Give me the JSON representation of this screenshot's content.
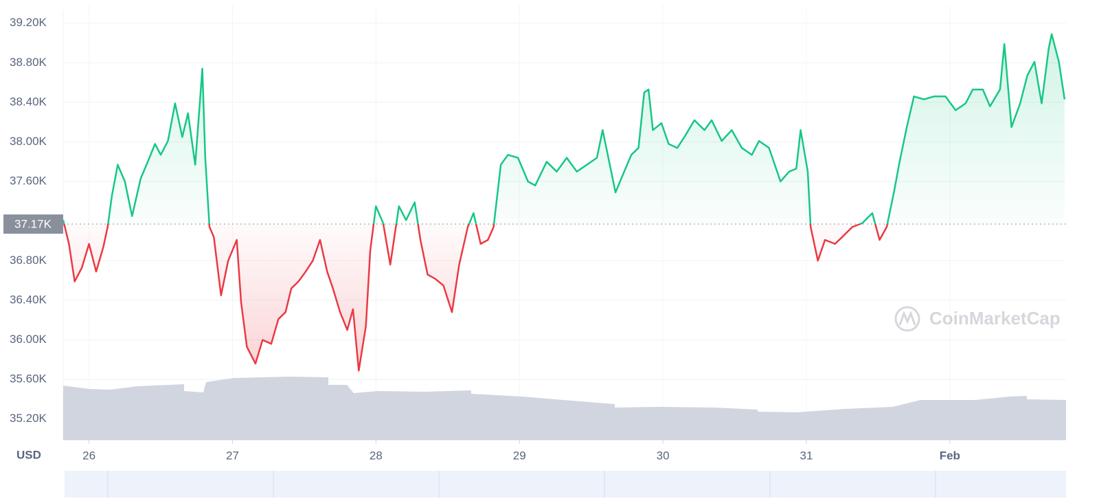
{
  "chart_data": {
    "type": "line",
    "y_unit": "USD",
    "watermark": "CoinMarketCap",
    "baseline": {
      "value": 37170,
      "label": "37.17K"
    },
    "color_up": "#16c784",
    "color_down": "#ea3943",
    "grid": true,
    "xlim": [
      25.82,
      32.81
    ],
    "xticks": [
      26,
      27,
      28,
      29,
      30,
      31,
      {
        "value": 32,
        "label": "Feb"
      }
    ],
    "ylim": [
      34990,
      39330
    ],
    "yticks": [
      {
        "value": 35200,
        "label": "35.20K"
      },
      {
        "value": 35600,
        "label": "35.60K"
      },
      {
        "value": 36000,
        "label": "36.00K"
      },
      {
        "value": 36400,
        "label": "36.40K"
      },
      {
        "value": 36800,
        "label": "36.80K"
      },
      {
        "value": 37600,
        "label": "37.60K"
      },
      {
        "value": 38000,
        "label": "38.00K"
      },
      {
        "value": 38400,
        "label": "38.40K"
      },
      {
        "value": 38800,
        "label": "38.80K"
      },
      {
        "value": 39200,
        "label": "39.20K"
      }
    ],
    "x": [
      25.82,
      25.86,
      25.9,
      25.95,
      26,
      26.05,
      26.1,
      26.13,
      26.16,
      26.2,
      26.25,
      26.3,
      26.36,
      26.41,
      26.46,
      26.5,
      26.55,
      26.6,
      26.65,
      26.69,
      26.74,
      26.79,
      26.81,
      26.84,
      26.87,
      26.92,
      26.97,
      27.03,
      27.06,
      27.1,
      27.16,
      27.21,
      27.27,
      27.32,
      27.37,
      27.41,
      27.46,
      27.51,
      27.56,
      27.61,
      27.66,
      27.7,
      27.75,
      27.8,
      27.84,
      27.88,
      27.93,
      27.96,
      28,
      28.05,
      28.1,
      28.16,
      28.21,
      28.27,
      28.31,
      28.36,
      28.41,
      28.47,
      28.53,
      28.58,
      28.64,
      28.68,
      28.73,
      28.78,
      28.82,
      28.87,
      28.92,
      28.99,
      29.06,
      29.11,
      29.19,
      29.26,
      29.33,
      29.4,
      29.47,
      29.54,
      29.58,
      29.62,
      29.67,
      29.71,
      29.78,
      29.83,
      29.87,
      29.9,
      29.93,
      29.99,
      30.04,
      30.1,
      30.15,
      30.22,
      30.29,
      30.34,
      30.41,
      30.48,
      30.55,
      30.62,
      30.67,
      30.74,
      30.82,
      30.88,
      30.93,
      30.96,
      31.01,
      31.03,
      31.08,
      31.13,
      31.2,
      31.25,
      31.32,
      31.39,
      31.46,
      31.51,
      31.56,
      31.61,
      31.65,
      31.7,
      31.75,
      31.82,
      31.89,
      31.97,
      32.04,
      32.11,
      32.16,
      32.23,
      32.28,
      32.35,
      32.38,
      32.43,
      32.49,
      32.54,
      32.59,
      32.64,
      32.69,
      32.71,
      32.76,
      32.8
    ],
    "values": [
      37210,
      36970,
      36590,
      36730,
      36970,
      36690,
      36940,
      37140,
      37460,
      37770,
      37600,
      37250,
      37630,
      37800,
      37980,
      37870,
      38010,
      38390,
      38050,
      38290,
      37770,
      38740,
      37840,
      37140,
      37040,
      36450,
      36800,
      37010,
      36380,
      35930,
      35760,
      36000,
      35960,
      36210,
      36280,
      36520,
      36590,
      36690,
      36800,
      37010,
      36690,
      36520,
      36280,
      36100,
      36310,
      35690,
      36140,
      36900,
      37350,
      37180,
      36760,
      37350,
      37210,
      37390,
      37010,
      36660,
      36620,
      36550,
      36280,
      36760,
      37140,
      37280,
      36970,
      37010,
      37140,
      37770,
      37870,
      37840,
      37600,
      37560,
      37800,
      37700,
      37840,
      37700,
      37770,
      37840,
      38120,
      37840,
      37490,
      37630,
      37870,
      37940,
      38500,
      38530,
      38120,
      38190,
      37980,
      37940,
      38050,
      38220,
      38120,
      38220,
      38010,
      38120,
      37940,
      37870,
      38010,
      37940,
      37600,
      37700,
      37730,
      38120,
      37700,
      37140,
      36800,
      37010,
      36970,
      37040,
      37140,
      37180,
      37280,
      37010,
      37140,
      37490,
      37800,
      38150,
      38460,
      38430,
      38460,
      38460,
      38320,
      38390,
      38530,
      38530,
      38360,
      38530,
      38990,
      38150,
      38390,
      38670,
      38810,
      38390,
      38950,
      39090,
      38810,
      38430
    ]
  }
}
